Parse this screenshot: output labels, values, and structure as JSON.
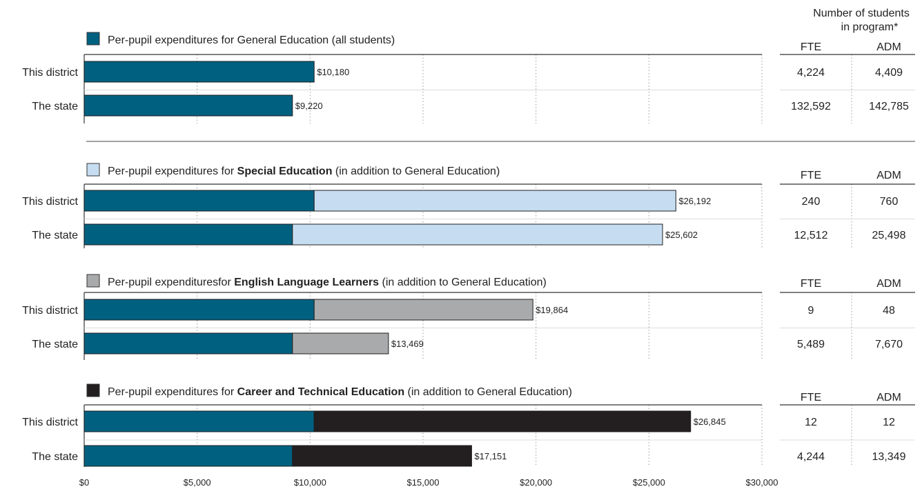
{
  "chart_data": {
    "type": "bar",
    "stacked": true,
    "orientation": "horizontal",
    "xlim": [
      0,
      30000
    ],
    "x_ticks": [
      "$0",
      "$5,000",
      "$10,000",
      "$15,000",
      "$20,000",
      "$25,000",
      "$30,000"
    ],
    "x_tick_values": [
      0,
      5000,
      10000,
      15000,
      20000,
      25000,
      30000
    ],
    "grid": "vertical dotted",
    "categories": [
      "This district",
      "The state"
    ],
    "colors": {
      "general": "#006080",
      "special": "#c6ddf1",
      "ell": "#a9aaac",
      "cte": "#231f20"
    },
    "table_header": {
      "title": "Number of students in program*",
      "fte": "FTE",
      "adm": "ADM"
    },
    "sections": [
      {
        "key": "general",
        "legend": [
          {
            "text": "Per-pupil expenditures for General Education (all students)",
            "bold": false
          }
        ],
        "rows": [
          {
            "label": "This district",
            "general": 10180,
            "total": 10180,
            "value_label": "$10,180",
            "fte": "4,224",
            "adm": "4,409"
          },
          {
            "label": "The state",
            "general": 9220,
            "total": 9220,
            "value_label": "$9,220",
            "fte": "132,592",
            "adm": "142,785"
          }
        ]
      },
      {
        "key": "special",
        "legend": [
          {
            "text": "Per-pupil expenditures for ",
            "bold": false
          },
          {
            "text": "Special Education",
            "bold": true
          },
          {
            "text": " (in addition to General Education)",
            "bold": false
          }
        ],
        "rows": [
          {
            "label": "This district",
            "general": 10180,
            "total": 26192,
            "value_label": "$26,192",
            "fte": "240",
            "adm": "760"
          },
          {
            "label": "The state",
            "general": 9220,
            "total": 25602,
            "value_label": "$25,602",
            "fte": "12,512",
            "adm": "25,498"
          }
        ]
      },
      {
        "key": "ell",
        "legend": [
          {
            "text": "Per-pupil expendituresfor ",
            "bold": false
          },
          {
            "text": "English Language Learners",
            "bold": true
          },
          {
            "text": " (in addition to General Education)",
            "bold": false
          }
        ],
        "rows": [
          {
            "label": "This district",
            "general": 10180,
            "total": 19864,
            "value_label": "$19,864",
            "fte": "9",
            "adm": "48"
          },
          {
            "label": "The state",
            "general": 9220,
            "total": 13469,
            "value_label": "$13,469",
            "fte": "5,489",
            "adm": "7,670"
          }
        ]
      },
      {
        "key": "cte",
        "legend": [
          {
            "text": "Per-pupil expenditures for ",
            "bold": false
          },
          {
            "text": "Career and Technical Education",
            "bold": true
          },
          {
            "text": "  (in addition to General Education)",
            "bold": false
          }
        ],
        "rows": [
          {
            "label": "This district",
            "general": 10180,
            "total": 26845,
            "value_label": "$26,845",
            "fte": "12",
            "adm": "12"
          },
          {
            "label": "The state",
            "general": 9220,
            "total": 17151,
            "value_label": "$17,151",
            "fte": "4,244",
            "adm": "13,349"
          }
        ]
      }
    ]
  }
}
